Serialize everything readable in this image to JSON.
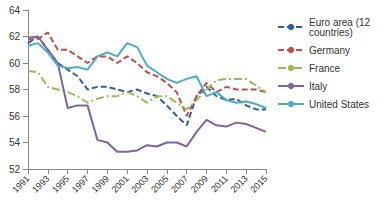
{
  "chart_data": {
    "type": "line",
    "x": [
      1991,
      1992,
      1993,
      1994,
      1995,
      1996,
      1997,
      1998,
      1999,
      2000,
      2001,
      2002,
      2003,
      2004,
      2005,
      2006,
      2007,
      2008,
      2009,
      2010,
      2011,
      2012,
      2013,
      2014,
      2015
    ],
    "xlim": [
      1991,
      2015
    ],
    "xticks": [
      1991,
      1993,
      1995,
      1997,
      1999,
      2001,
      2003,
      2005,
      2007,
      2009,
      2011,
      2013,
      2015
    ],
    "ylim": [
      52,
      64
    ],
    "yticks": [
      52,
      54,
      56,
      58,
      60,
      62,
      64
    ],
    "grid": false,
    "legend": "right",
    "series": [
      {
        "name": "Euro area (12 countries)",
        "color": "#2f5f9f",
        "line_style": "dashed",
        "values": [
          61.5,
          62.0,
          61.0,
          60.0,
          59.5,
          59.0,
          58.0,
          58.2,
          58.2,
          58.0,
          57.8,
          58.0,
          57.7,
          57.5,
          56.8,
          56.0,
          55.3,
          57.5,
          58.2,
          57.5,
          57.2,
          57.3,
          56.8,
          56.5,
          56.5
        ]
      },
      {
        "name": "Germany",
        "color": "#c0504d",
        "line_style": "dashed",
        "values": [
          61.8,
          61.8,
          62.3,
          61.0,
          61.0,
          60.5,
          60.0,
          60.5,
          60.5,
          60.0,
          60.5,
          60.0,
          59.3,
          59.0,
          58.5,
          57.8,
          56.0,
          57.5,
          58.5,
          57.8,
          58.2,
          58.0,
          58.0,
          58.0,
          57.8
        ]
      },
      {
        "name": "France",
        "color": "#9bbb59",
        "line_style": "dashdot",
        "values": [
          59.4,
          59.3,
          58.2,
          58.0,
          57.8,
          57.5,
          57.0,
          57.3,
          57.5,
          57.5,
          57.8,
          57.5,
          57.0,
          57.5,
          57.5,
          57.0,
          56.5,
          57.2,
          58.0,
          58.7,
          58.8,
          58.8,
          58.8,
          58.3,
          57.8
        ]
      },
      {
        "name": "Italy",
        "color": "#8064a2",
        "line_style": "solid",
        "values": [
          61.9,
          62.0,
          61.0,
          60.0,
          56.6,
          56.8,
          56.8,
          54.2,
          54.0,
          53.3,
          53.3,
          53.4,
          53.8,
          53.7,
          54.0,
          54.0,
          53.7,
          54.8,
          55.7,
          55.3,
          55.2,
          55.5,
          55.4,
          55.1,
          54.8
        ]
      },
      {
        "name": "United States",
        "color": "#4bacc6",
        "line_style": "solid",
        "values": [
          61.3,
          61.5,
          60.8,
          59.8,
          59.6,
          59.7,
          59.5,
          60.5,
          60.8,
          60.5,
          61.5,
          61.2,
          59.8,
          59.3,
          58.8,
          58.5,
          58.8,
          59.0,
          57.5,
          57.8,
          57.2,
          57.0,
          57.1,
          56.9,
          56.6
        ]
      }
    ]
  }
}
